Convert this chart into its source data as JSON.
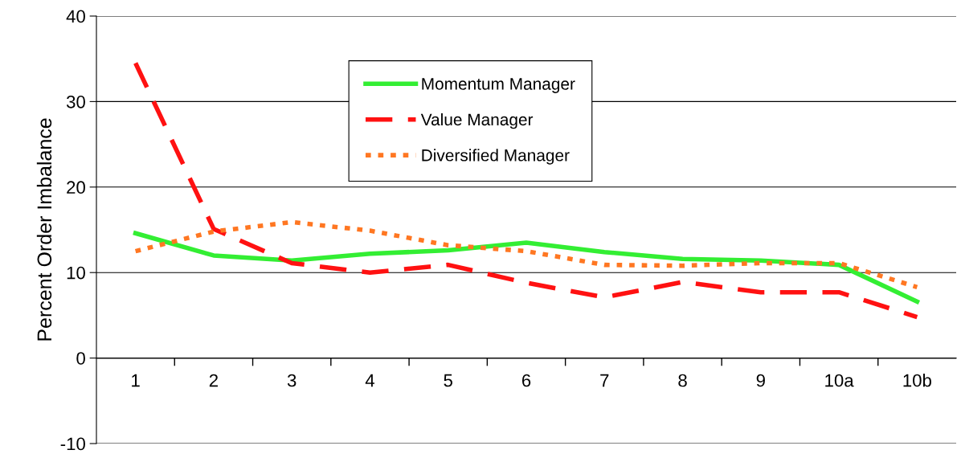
{
  "chart_data": {
    "type": "line",
    "ylabel": "Percent Order Imbalance",
    "categories": [
      "1",
      "2",
      "3",
      "4",
      "5",
      "6",
      "7",
      "8",
      "9",
      "10a",
      "10b"
    ],
    "series": [
      {
        "name": "Momentum Manager",
        "color": "#33ee33",
        "line_style": "solid",
        "values": [
          14.6,
          12.0,
          11.4,
          12.2,
          12.6,
          13.5,
          12.4,
          11.6,
          11.4,
          10.9,
          6.6
        ]
      },
      {
        "name": "Value Manager",
        "color": "#ff1111",
        "line_style": "dashed",
        "values": [
          34.5,
          15.1,
          11.1,
          10.0,
          10.9,
          8.8,
          7.1,
          8.9,
          7.7,
          7.7,
          4.8
        ]
      },
      {
        "name": "Diversified Manager",
        "color": "#ff7722",
        "line_style": "dotted",
        "values": [
          12.5,
          14.8,
          15.9,
          14.9,
          13.2,
          12.5,
          10.9,
          10.8,
          11.1,
          11.1,
          8.3
        ]
      }
    ],
    "ylim": [
      -10,
      40
    ],
    "yticks": [
      -10,
      0,
      10,
      20,
      30,
      40
    ],
    "grid": "y",
    "legend": "top",
    "marker": "none"
  }
}
